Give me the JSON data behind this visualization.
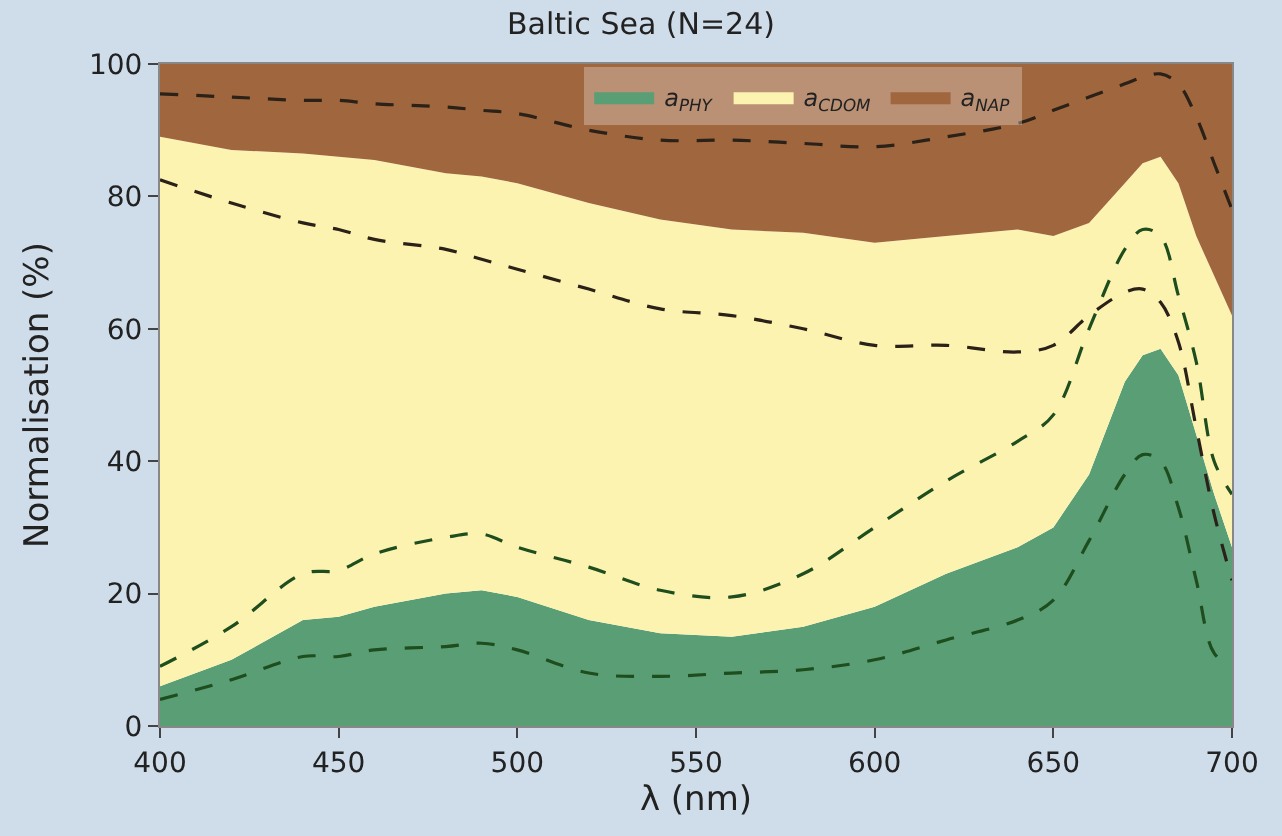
{
  "chart_data": {
    "type": "area",
    "stacked": true,
    "title": "Baltic Sea (N=24)",
    "xlabel": "λ (nm)",
    "ylabel": "Normalisation (%)",
    "x": [
      400,
      420,
      440,
      450,
      460,
      480,
      490,
      500,
      520,
      540,
      560,
      580,
      600,
      620,
      640,
      650,
      660,
      670,
      675,
      680,
      685,
      690,
      695,
      700
    ],
    "series": [
      {
        "name": "a$_{PHY}$",
        "color": "#5a9e75",
        "values": [
          6,
          10,
          16,
          16.5,
          18,
          20,
          20.5,
          19.5,
          16,
          14,
          13.5,
          15,
          18,
          23,
          27,
          30,
          38,
          52,
          56,
          57,
          53,
          44,
          35,
          27
        ]
      },
      {
        "name": "a$_{CDOM}$",
        "color": "#fdf3b0",
        "values": [
          83,
          77,
          70.5,
          69.5,
          67.5,
          63.5,
          62.5,
          62.5,
          63,
          62.5,
          61.5,
          59.5,
          55,
          51,
          48,
          44,
          38,
          30,
          29,
          29,
          29,
          30,
          33,
          35
        ]
      },
      {
        "name": "a$_{NAP}$",
        "color": "#a0663e",
        "values": [
          11,
          13,
          13.5,
          14,
          14.5,
          16.5,
          17,
          18,
          21,
          23.5,
          25,
          25.5,
          27,
          26,
          25,
          26,
          24,
          18,
          15,
          14,
          18,
          26,
          32,
          38
        ]
      },
      {
        "type": "line",
        "line_style": "dashed",
        "color": "#1e4d1e",
        "values": [
          9,
          15,
          23,
          23.5,
          26,
          28.5,
          29,
          27,
          24,
          20.5,
          19.5,
          23,
          30,
          37,
          43,
          47,
          60,
          72,
          75,
          74,
          65,
          55,
          40,
          35
        ]
      },
      {
        "type": "line",
        "line_style": "dashed",
        "color": "#1e4d1e",
        "values": [
          4,
          7,
          10.5,
          10.5,
          11.5,
          12,
          12.5,
          11.5,
          8,
          7.5,
          8,
          8.5,
          10,
          13,
          16,
          19,
          28,
          38,
          41,
          40,
          33,
          22,
          11,
          9
        ]
      },
      {
        "type": "line",
        "line_style": "dashed",
        "color": "#2a2118",
        "values": [
          95.5,
          95,
          94.5,
          94.5,
          94,
          93.5,
          93,
          92.5,
          90,
          88.5,
          88.5,
          88,
          87.5,
          89,
          91,
          93,
          95,
          97,
          98,
          98.5,
          97,
          92,
          85,
          78
        ]
      },
      {
        "type": "line",
        "line_style": "dashed",
        "color": "#2a2118",
        "values": [
          82.5,
          79,
          76,
          75,
          73.5,
          72,
          70.5,
          69,
          66,
          63,
          62,
          60,
          57.5,
          57.5,
          56.5,
          57.5,
          62,
          65.5,
          66,
          64,
          58,
          45,
          32,
          22
        ]
      }
    ],
    "xlim": [
      400,
      700
    ],
    "ylim": [
      0,
      100
    ],
    "xticks": [
      400,
      450,
      500,
      550,
      600,
      650,
      700
    ],
    "yticks": [
      0,
      20,
      40,
      60,
      80,
      100
    ],
    "legend": "top"
  }
}
